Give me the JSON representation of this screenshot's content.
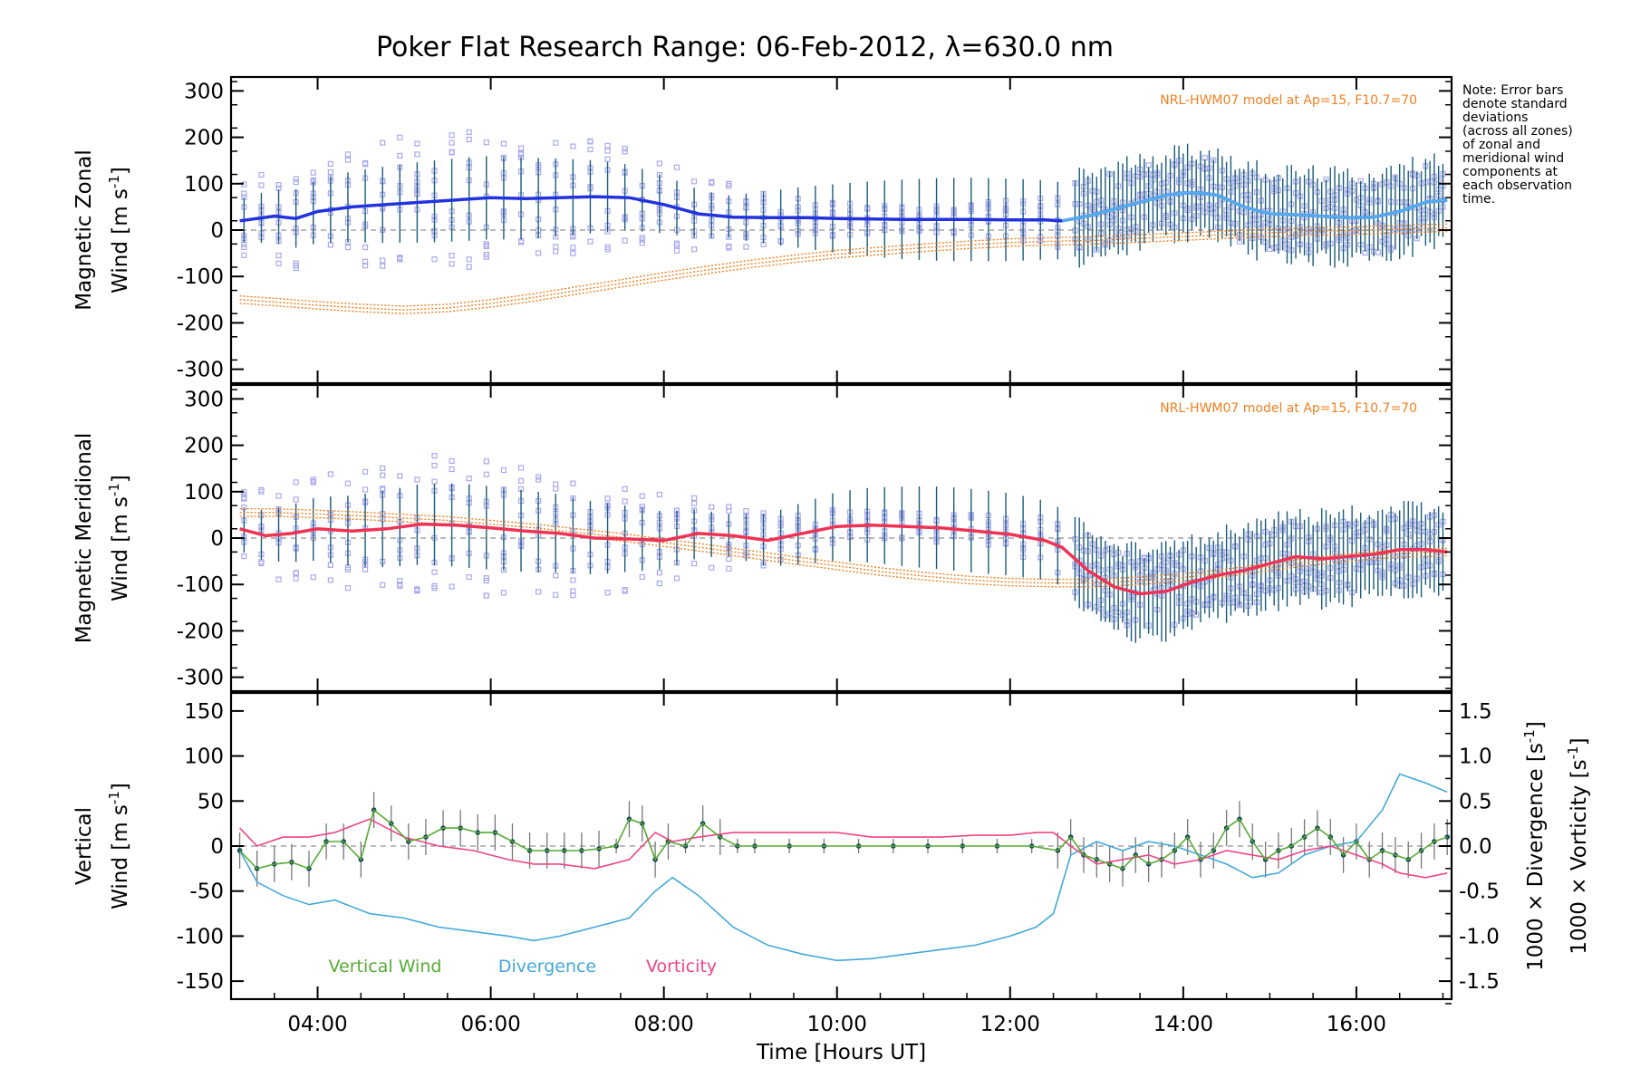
{
  "title": "Poker Flat Research Range: 06-Feb-2012, λ=630.0 nm",
  "note": [
    "Note: Error bars",
    "denote standard",
    "deviations",
    "(across all zones)",
    "of zonal and",
    "meridional wind",
    "components at",
    "each observation",
    "time."
  ],
  "colors": {
    "zonal": "#2233dd",
    "zonal_late": "#55aaee",
    "meridional": "#ee3355",
    "model": "#f08020",
    "scatter": "#aaaaee",
    "errorbar": "#1a5a7a",
    "vertical": "#55aa33",
    "divergence": "#44a8d8",
    "vorticity": "#ee4488"
  },
  "chart_data": [
    {
      "type": "line",
      "panel": "zonal",
      "ylabel_line1": "Magnetic Zonal",
      "ylabel_line2": "Wind [m s",
      "ylabel_sup": "-1",
      "ylabel_end": "]",
      "ylim": [
        -330,
        330
      ],
      "yticks": [
        300,
        200,
        100,
        0,
        -100,
        -200,
        -300
      ],
      "model_label": "NRL-HWM07 model at Ap=15, F10.7=70",
      "series": [
        {
          "role": "wind",
          "x": [
            3.1,
            3.5,
            3.75,
            4.0,
            4.4,
            4.8,
            5.2,
            5.6,
            6.0,
            6.4,
            6.8,
            7.2,
            7.6,
            8.0,
            8.4,
            8.8,
            9.2,
            9.6,
            10.0,
            10.4,
            10.8,
            11.2,
            11.6,
            12.0,
            12.4,
            12.6,
            12.9,
            13.2,
            13.5,
            13.8,
            14.0,
            14.2,
            14.4,
            14.7,
            15.0,
            15.3,
            15.6,
            15.9,
            16.2,
            16.5,
            16.8,
            17.05
          ],
          "y": [
            20,
            30,
            25,
            40,
            50,
            55,
            60,
            65,
            70,
            68,
            70,
            72,
            70,
            55,
            35,
            28,
            27,
            27,
            25,
            24,
            23,
            23,
            23,
            22,
            22,
            20,
            30,
            45,
            60,
            75,
            80,
            80,
            75,
            50,
            35,
            33,
            30,
            27,
            28,
            40,
            60,
            65
          ]
        },
        {
          "role": "model",
          "x": [
            3.1,
            3.5,
            4.0,
            4.5,
            5.0,
            5.5,
            6.0,
            6.5,
            7.0,
            7.5,
            8.0,
            8.5,
            9.0,
            9.5,
            10.0,
            10.5,
            11.0,
            11.5,
            12.0,
            12.5,
            13.0,
            13.5,
            14.0,
            14.5,
            15.0,
            15.5,
            16.0,
            16.5,
            17.05
          ],
          "y": [
            -150,
            -155,
            -162,
            -168,
            -172,
            -168,
            -158,
            -145,
            -130,
            -115,
            -100,
            -86,
            -73,
            -62,
            -52,
            -45,
            -38,
            -32,
            -27,
            -24,
            -22,
            -18,
            -14,
            -10,
            -6,
            -3,
            -1,
            2,
            5
          ]
        }
      ]
    },
    {
      "type": "line",
      "panel": "meridional",
      "ylabel_line1": "Magnetic Meridional",
      "ylabel_line2": "Wind [m s",
      "ylabel_sup": "-1",
      "ylabel_end": "]",
      "ylim": [
        -330,
        330
      ],
      "yticks": [
        300,
        200,
        100,
        0,
        -100,
        -200,
        -300
      ],
      "model_label": "NRL-HWM07 model at Ap=15, F10.7=70",
      "series": [
        {
          "role": "wind",
          "x": [
            3.1,
            3.4,
            3.7,
            4.0,
            4.4,
            4.8,
            5.2,
            5.6,
            6.0,
            6.4,
            6.8,
            7.2,
            7.6,
            8.0,
            8.4,
            8.8,
            9.2,
            9.6,
            10.0,
            10.4,
            10.8,
            11.2,
            11.6,
            12.0,
            12.4,
            12.6,
            12.9,
            13.2,
            13.5,
            13.8,
            14.1,
            14.4,
            14.7,
            15.0,
            15.3,
            15.6,
            15.9,
            16.2,
            16.5,
            16.8,
            17.05
          ],
          "y": [
            20,
            5,
            10,
            20,
            15,
            20,
            30,
            28,
            22,
            15,
            10,
            0,
            -2,
            -5,
            10,
            5,
            -5,
            10,
            25,
            28,
            25,
            22,
            15,
            8,
            -5,
            -20,
            -70,
            -105,
            -120,
            -115,
            -95,
            -80,
            -70,
            -55,
            -40,
            -45,
            -40,
            -35,
            -25,
            -25,
            -30
          ]
        },
        {
          "role": "model",
          "x": [
            3.1,
            3.5,
            4.0,
            4.5,
            5.0,
            5.5,
            6.0,
            6.5,
            7.0,
            7.5,
            8.0,
            8.5,
            9.0,
            9.5,
            10.0,
            10.5,
            11.0,
            11.5,
            12.0,
            12.5,
            13.0,
            13.5,
            14.0,
            14.5,
            15.0,
            15.5,
            16.0,
            16.5,
            17.05
          ],
          "y": [
            55,
            55,
            52,
            48,
            43,
            38,
            30,
            22,
            12,
            2,
            -10,
            -22,
            -35,
            -48,
            -60,
            -72,
            -82,
            -90,
            -95,
            -97,
            -97,
            -92,
            -85,
            -75,
            -62,
            -50,
            -40,
            -33,
            -30
          ]
        }
      ]
    },
    {
      "type": "line",
      "panel": "vertical",
      "ylabel_line1": "Vertical",
      "ylabel_line2": "Wind [m s",
      "ylabel_sup": "-1",
      "ylabel_end": "]",
      "ylim": [
        -170,
        170
      ],
      "yticks": [
        150,
        100,
        50,
        0,
        -50,
        -100,
        -150
      ],
      "y2lim": [
        -1.7,
        1.7
      ],
      "y2ticks": [
        "1.5",
        "1.0",
        "0.5",
        "0.0",
        "-0.5",
        "-1.0",
        "-1.5"
      ],
      "y2label_div": "1000 × Divergence [s",
      "y2label_vor": "1000 × Vorticity [s",
      "y2label_sup": "-1",
      "y2label_end": "]",
      "xlabel": "Time [Hours UT]",
      "xticks": [
        "04:00",
        "06:00",
        "08:00",
        "10:00",
        "12:00",
        "14:00",
        "16:00"
      ],
      "xtick_values": [
        4,
        6,
        8,
        10,
        12,
        14,
        16
      ],
      "xlim": [
        3.0,
        17.1
      ],
      "legend": [
        "Vertical Wind",
        "Divergence",
        "Vorticity"
      ],
      "series": [
        {
          "name": "Vertical Wind",
          "axis": "left",
          "x": [
            3.1,
            3.3,
            3.5,
            3.7,
            3.9,
            4.1,
            4.3,
            4.5,
            4.65,
            4.85,
            5.05,
            5.25,
            5.45,
            5.65,
            5.85,
            6.05,
            6.25,
            6.45,
            6.65,
            6.85,
            7.05,
            7.25,
            7.45,
            7.6,
            7.75,
            7.9,
            8.05,
            8.25,
            8.45,
            8.65,
            8.85,
            9.05,
            9.45,
            9.85,
            10.25,
            10.65,
            11.05,
            11.45,
            11.85,
            12.25,
            12.55,
            12.7,
            12.85,
            13.0,
            13.15,
            13.3,
            13.45,
            13.6,
            13.75,
            13.9,
            14.05,
            14.2,
            14.35,
            14.5,
            14.65,
            14.8,
            14.95,
            15.1,
            15.25,
            15.4,
            15.55,
            15.7,
            15.85,
            16.0,
            16.15,
            16.3,
            16.45,
            16.6,
            16.75,
            16.9,
            17.05
          ],
          "y": [
            -5,
            -25,
            -20,
            -18,
            -25,
            5,
            5,
            -15,
            40,
            25,
            5,
            10,
            20,
            20,
            15,
            15,
            5,
            -5,
            -5,
            -5,
            -5,
            -3,
            0,
            30,
            25,
            -15,
            5,
            0,
            25,
            10,
            0,
            0,
            0,
            0,
            0,
            0,
            0,
            0,
            0,
            0,
            -5,
            10,
            -10,
            -15,
            -20,
            -25,
            -10,
            -20,
            -15,
            -5,
            10,
            -15,
            -5,
            20,
            30,
            5,
            -15,
            -5,
            0,
            10,
            20,
            10,
            -10,
            5,
            -15,
            -5,
            -10,
            -15,
            -5,
            5,
            10
          ]
        },
        {
          "name": "Divergence",
          "axis": "right",
          "x": [
            3.1,
            3.3,
            3.6,
            3.9,
            4.2,
            4.6,
            5.0,
            5.4,
            5.8,
            6.2,
            6.5,
            6.8,
            7.2,
            7.6,
            7.9,
            8.1,
            8.4,
            8.8,
            9.2,
            9.6,
            10.0,
            10.4,
            10.8,
            11.2,
            11.6,
            12.0,
            12.3,
            12.5,
            12.7,
            13.0,
            13.3,
            13.6,
            13.9,
            14.2,
            14.5,
            14.8,
            15.1,
            15.4,
            15.7,
            16.0,
            16.3,
            16.5,
            16.8,
            17.05
          ],
          "y": [
            -0.05,
            -0.4,
            -0.55,
            -0.65,
            -0.6,
            -0.75,
            -0.8,
            -0.9,
            -0.95,
            -1.0,
            -1.05,
            -1.0,
            -0.9,
            -0.8,
            -0.5,
            -0.35,
            -0.55,
            -0.9,
            -1.1,
            -1.2,
            -1.27,
            -1.25,
            -1.2,
            -1.15,
            -1.1,
            -1.0,
            -0.9,
            -0.75,
            -0.1,
            0.05,
            -0.05,
            0.05,
            0.0,
            -0.1,
            -0.2,
            -0.35,
            -0.3,
            -0.1,
            0.0,
            0.05,
            0.4,
            0.8,
            0.7,
            0.6
          ]
        },
        {
          "name": "Vorticity",
          "axis": "right",
          "x": [
            3.1,
            3.3,
            3.6,
            3.9,
            4.2,
            4.6,
            5.0,
            5.4,
            5.8,
            6.2,
            6.5,
            6.8,
            7.2,
            7.6,
            7.9,
            8.1,
            8.4,
            8.8,
            9.2,
            9.6,
            10.0,
            10.4,
            10.8,
            11.2,
            11.6,
            12.0,
            12.3,
            12.5,
            12.7,
            13.0,
            13.3,
            13.6,
            13.9,
            14.2,
            14.5,
            14.8,
            15.1,
            15.4,
            15.7,
            16.0,
            16.3,
            16.5,
            16.8,
            17.05
          ],
          "y": [
            0.2,
            0.0,
            0.1,
            0.1,
            0.15,
            0.3,
            0.1,
            0.0,
            -0.05,
            -0.15,
            -0.2,
            -0.2,
            -0.25,
            -0.15,
            0.15,
            0.05,
            0.1,
            0.15,
            0.15,
            0.15,
            0.15,
            0.1,
            0.1,
            0.1,
            0.12,
            0.12,
            0.15,
            0.15,
            0.0,
            -0.2,
            -0.15,
            -0.1,
            -0.2,
            -0.15,
            -0.05,
            -0.1,
            -0.15,
            -0.05,
            0.0,
            -0.1,
            -0.2,
            -0.3,
            -0.35,
            -0.3
          ]
        }
      ]
    }
  ]
}
